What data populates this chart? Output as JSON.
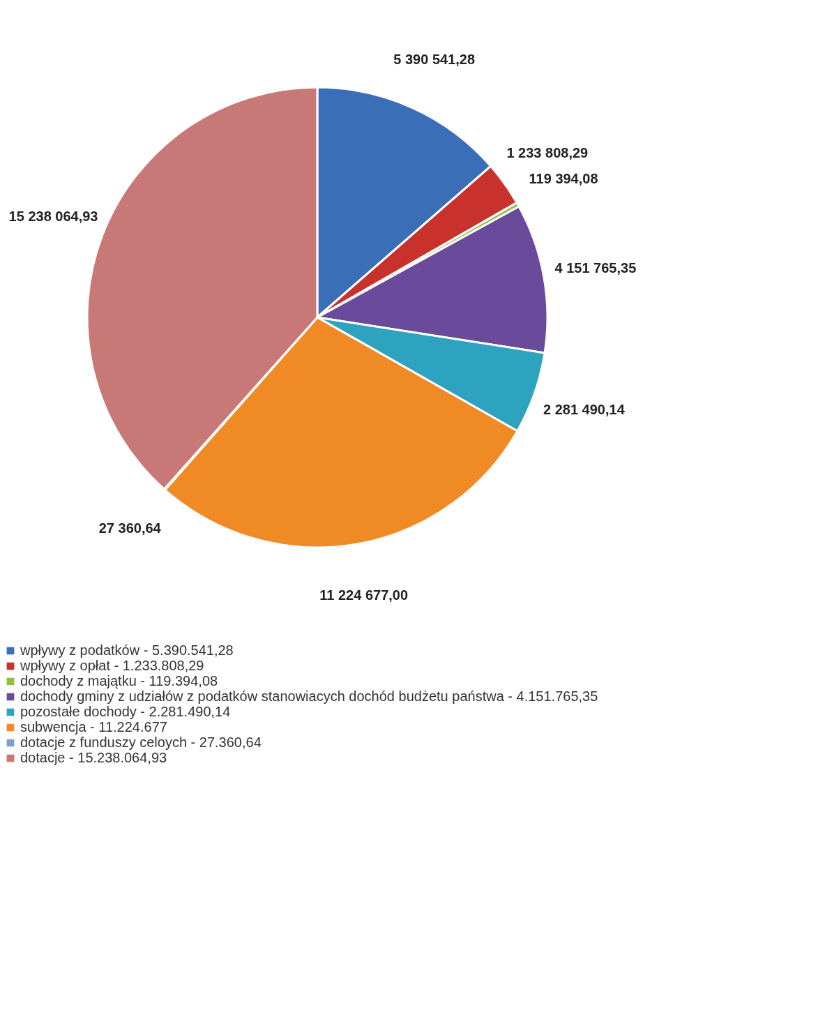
{
  "chart_data": {
    "type": "pie",
    "categories": [
      "wpływy z podatków - 5.390.541,28",
      "wpływy z opłat - 1.233.808,29",
      "dochody z majątku - 119.394,08",
      "dochody gminy z udziałów z podatków stanowiacych dochód budżetu państwa - 4.151.765,35",
      "pozostałe dochody - 2.281.490,14",
      "subwencja - 11.224.677",
      "dotacje z funduszy celoych - 27.360,64",
      "dotacje - 15.238.064,93"
    ],
    "values": [
      5390541.28,
      1233808.29,
      119394.08,
      4151765.35,
      2281490.14,
      11224677.0,
      27360.64,
      15238064.93
    ],
    "colors": [
      "#3a6fb8",
      "#c8312c",
      "#8fbf3c",
      "#6a4a9a",
      "#2ea3c0",
      "#f08a24",
      "#7f9fcf",
      "#c97878"
    ],
    "value_labels": [
      "5 390 541,28",
      "1 233 808,29",
      "119 394,08",
      "4 151 765,35",
      "2 281 490,14",
      "11 224 677,00",
      "27 360,64",
      "15 238 064,93"
    ],
    "legend": "bottom"
  }
}
